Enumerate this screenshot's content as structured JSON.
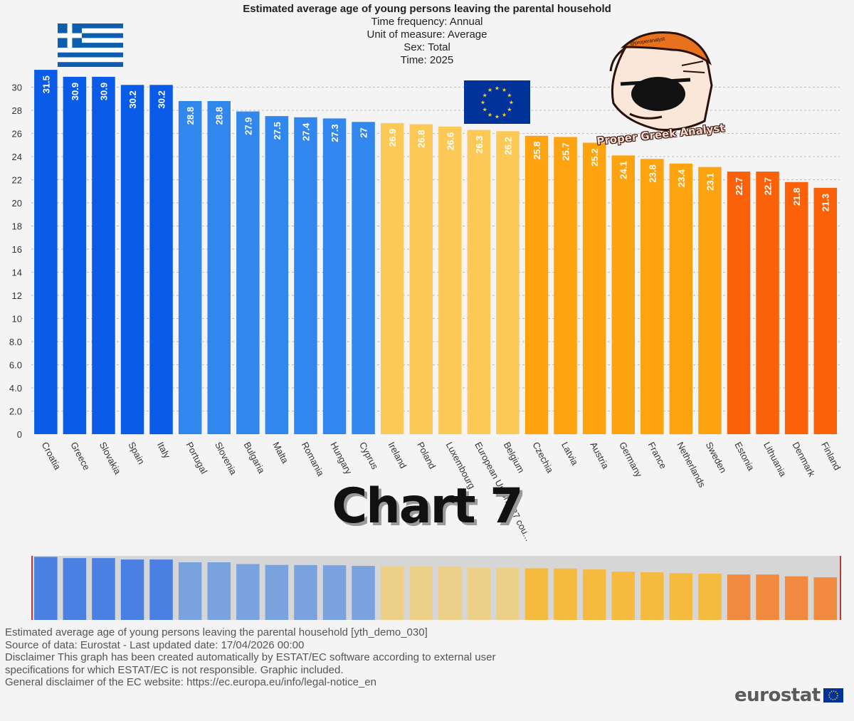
{
  "chart_data": {
    "type": "bar",
    "title": "Estimated average age of young persons leaving the parental household",
    "subtitle_lines": [
      "Time frequency:  Annual",
      "Unit of measure:  Average",
      "Sex:  Total",
      "Time:  2025"
    ],
    "categories": [
      "Croatia",
      "Greece",
      "Slovakia",
      "Spain",
      "Italy",
      "Portugal",
      "Slovenia",
      "Bulgaria",
      "Malta",
      "Romania",
      "Hungary",
      "Cyprus",
      "Ireland",
      "Poland",
      "Luxembourg",
      "European Union - 27 cou...",
      "Belgium",
      "Czechia",
      "Latvia",
      "Austria",
      "Germany",
      "France",
      "Netherlands",
      "Sweden",
      "Estonia",
      "Lithuania",
      "Denmark",
      "Finland"
    ],
    "values": [
      31.5,
      30.9,
      30.9,
      30.2,
      30.2,
      28.8,
      28.8,
      27.9,
      27.5,
      27.4,
      27.3,
      27,
      26.9,
      26.8,
      26.6,
      26.3,
      26.2,
      25.8,
      25.7,
      25.2,
      24.1,
      23.8,
      23.4,
      23.1,
      22.7,
      22.7,
      21.8,
      21.3
    ],
    "value_labels": [
      "31.5",
      "30.9",
      "30.9",
      "30.2",
      "30.2",
      "28.8",
      "28.8",
      "27.9",
      "27.5",
      "27.4",
      "27.3",
      "27",
      "26.9",
      "26.8",
      "26.6",
      "26.3",
      "26.2",
      "25.8",
      "25.7",
      "25.2",
      "24.1",
      "23.8",
      "23.4",
      "23.1",
      "22.7",
      "22.7",
      "21.8",
      "21.3"
    ],
    "color_groups": [
      0,
      0,
      0,
      0,
      0,
      1,
      1,
      1,
      1,
      1,
      1,
      1,
      2,
      2,
      2,
      2,
      2,
      3,
      3,
      3,
      3,
      3,
      3,
      3,
      4,
      4,
      4,
      4
    ],
    "ylim": [
      0,
      32
    ],
    "yticks": [
      0,
      2,
      4,
      6,
      8,
      10,
      12,
      14,
      16,
      18,
      20,
      22,
      24,
      26,
      28,
      30
    ],
    "ytick_labels": [
      "0",
      "2.0",
      "4.0",
      "6.0",
      "8.0",
      "10",
      "12",
      "14",
      "16",
      "18",
      "20",
      "22",
      "24",
      "26",
      "28",
      "30"
    ],
    "grid": true,
    "xlabel": "",
    "ylabel": ""
  },
  "colors": {
    "group_colors": [
      "#0a5be8",
      "#3187ee",
      "#fcc957",
      "#fda30f",
      "#fa6109"
    ],
    "navigator_colors": [
      "#4a80e2",
      "#7aa2df",
      "#ecd088",
      "#f5bb3f",
      "#ef8a3e"
    ],
    "grid": "#bdbdbd",
    "greece_blue": "#0d5eaf",
    "eu_blue": "#003399",
    "eu_star": "#ffcc00"
  },
  "overlay": {
    "big_label": "Chart 7",
    "badge_text": "Proper Greek Analyst",
    "badge_handle": "@properanalyst",
    "flags": [
      "greece-flag",
      "eu-flag"
    ]
  },
  "footer": {
    "lines": [
      "Estimated average age of young persons leaving the parental household [yth_demo_030]",
      "Source of data: Eurostat - Last updated date: 17/04/2026 00:00",
      "Disclaimer This graph has been created automatically by ESTAT/EC software according to external user",
      "specifications for which ESTAT/EC is not responsible. Graphic included.",
      "General disclaimer of the EC website: https://ec.europa.eu/info/legal-notice_en"
    ],
    "logo_text": "eurostat"
  }
}
